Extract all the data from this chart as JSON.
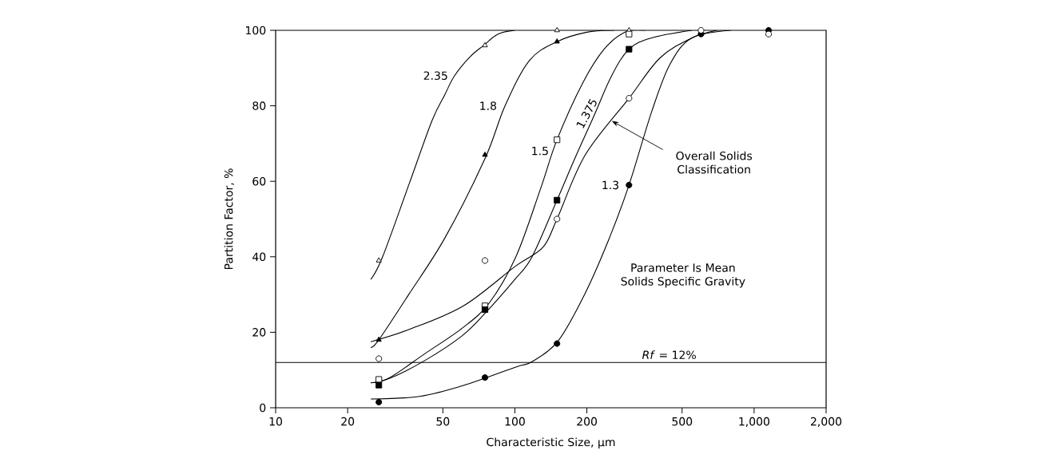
{
  "chart_data": {
    "type": "scatter",
    "xlabel": "Characteristic Size, µm",
    "ylabel": "Partition Factor, %",
    "log": "x",
    "grid": false,
    "xlim": [
      10,
      2000
    ],
    "ylim": [
      0,
      100
    ],
    "xticks": [
      10,
      20,
      50,
      100,
      200,
      500,
      {
        "value": 1000,
        "label": "1,000"
      },
      {
        "value": 2000,
        "label": "2,000"
      }
    ],
    "yticks": [
      0,
      20,
      40,
      60,
      80,
      100
    ],
    "series": [
      {
        "marker": "triangle",
        "color": "#ffffff",
        "x": [
          27,
          75,
          150,
          300
        ],
        "values": [
          39,
          96,
          100,
          100
        ]
      },
      {
        "type": "line",
        "name": "2.35",
        "color": "#000000",
        "marker": "none",
        "x": [
          25,
          28,
          36,
          45,
          51,
          56,
          65,
          74,
          85,
          100
        ],
        "values": [
          34,
          40,
          59,
          76,
          83,
          88,
          93,
          96,
          99,
          100
        ]
      },
      {
        "marker": "triangle",
        "color": "#000000",
        "x": [
          27,
          75,
          150
        ],
        "values": [
          18,
          67,
          97
        ]
      },
      {
        "type": "line",
        "name": "1.8",
        "color": "#000000",
        "marker": "none",
        "x": [
          25,
          27,
          36,
          51,
          75,
          91,
          115,
          150,
          200,
          260
        ],
        "values": [
          16,
          18,
          30,
          45,
          66,
          80,
          92,
          97,
          99.5,
          100
        ]
      },
      {
        "marker": "square",
        "color": "#ffffff",
        "x": [
          27,
          75,
          150,
          300
        ],
        "values": [
          7.5,
          27,
          71,
          99
        ]
      },
      {
        "type": "line",
        "name": "1.5",
        "color": "#000000",
        "marker": "none",
        "x": [
          25,
          30,
          42,
          60,
          78,
          101,
          128,
          150,
          192,
          236,
          290,
          350
        ],
        "values": [
          6.6,
          8,
          14.3,
          21,
          27.7,
          40,
          58,
          71,
          86,
          95,
          99.6,
          100
        ]
      },
      {
        "marker": "square",
        "color": "#000000",
        "x": [
          27,
          75,
          150,
          300
        ],
        "values": [
          6,
          26,
          55,
          95
        ]
      },
      {
        "type": "line",
        "name": "1.375",
        "color": "#000000",
        "marker": "none",
        "x": [
          25,
          30,
          42,
          60,
          75,
          100,
          118,
          150,
          178,
          213,
          254,
          300,
          373,
          550
        ],
        "values": [
          6.6,
          7.8,
          12.5,
          19,
          25,
          34,
          40,
          55,
          66,
          77,
          88,
          95,
          98,
          100
        ]
      },
      {
        "marker": "circle",
        "color": "#000000",
        "x": [
          27,
          75,
          150,
          300,
          600,
          1150
        ],
        "values": [
          1.5,
          8,
          17,
          59,
          99,
          100
        ]
      },
      {
        "type": "line",
        "name": "1.3",
        "color": "#000000",
        "marker": "none",
        "x": [
          25,
          40,
          61,
          101,
          118,
          152,
          197,
          247,
          300,
          373,
          445,
          550,
          800
        ],
        "values": [
          2.3,
          3,
          5.9,
          10.8,
          12.2,
          17.8,
          30.4,
          44.6,
          59,
          78.4,
          91,
          98,
          100
        ]
      },
      {
        "marker": "circle",
        "color": "#ffffff",
        "x": [
          27,
          75,
          150,
          300,
          600,
          1150
        ],
        "values": [
          13,
          39,
          50,
          82,
          100,
          99
        ]
      },
      {
        "type": "line",
        "color": "#000000",
        "marker": "none",
        "x": [
          25,
          36,
          61,
          101,
          131,
          150,
          197,
          300,
          403,
          550,
          700
        ],
        "values": [
          17.5,
          20.7,
          27,
          37.6,
          42.5,
          50,
          67,
          82,
          92.6,
          98,
          100
        ]
      }
    ],
    "ref_lines": [
      {
        "axis": "y",
        "value": 12,
        "label": "*Rf* = 12%",
        "color": "#000000",
        "line_style": "solid"
      }
    ],
    "annotations": [
      {
        "text": "Overall Solids Classification",
        "x": 254,
        "y": 76
      },
      "Parameter Is Mean Solids Specific Gravity"
    ]
  }
}
